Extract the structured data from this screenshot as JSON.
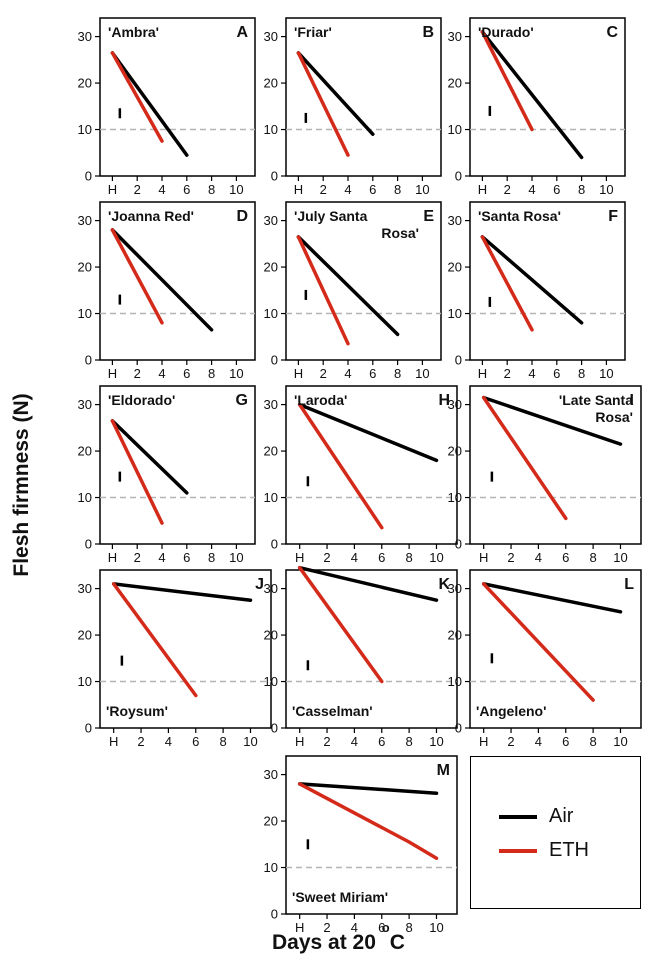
{
  "figure": {
    "ylabel": "Flesh firmness (N)",
    "xlabel_main": "Days at 20",
    "xlabel_sup": "o",
    "xlabel_unit": "C"
  },
  "colors": {
    "air": "#000000",
    "eth": "#d42a1a",
    "threshold": "#b5b5b5"
  },
  "legend": {
    "air": "Air",
    "eth": "ETH"
  },
  "axes": {
    "xticks": [
      {
        "v": 0,
        "label": "H"
      },
      {
        "v": 2,
        "label": "2"
      },
      {
        "v": 4,
        "label": "4"
      },
      {
        "v": 6,
        "label": "6"
      },
      {
        "v": 8,
        "label": "8"
      },
      {
        "v": 10,
        "label": "10"
      }
    ],
    "yticks": [
      0,
      10,
      20,
      30
    ],
    "xlim": [
      -1,
      11.5
    ],
    "ylim": [
      0,
      34
    ],
    "threshold": 10
  },
  "chart_data": [
    {
      "type": "line",
      "letter": "A",
      "title": "'Ambra'",
      "xlim": [
        -1,
        11.5
      ],
      "ylim": [
        0,
        34
      ],
      "error_bar": {
        "x": 0.6,
        "y": 13.5
      },
      "series": [
        {
          "name": "Air",
          "x": [
            0,
            6
          ],
          "y": [
            26.5,
            4.5
          ]
        },
        {
          "name": "ETH",
          "x": [
            0,
            4
          ],
          "y": [
            26.5,
            7.5
          ]
        }
      ]
    },
    {
      "type": "line",
      "letter": "B",
      "title": "'Friar'",
      "xlim": [
        -1,
        11.5
      ],
      "ylim": [
        0,
        34
      ],
      "error_bar": {
        "x": 0.6,
        "y": 12.5
      },
      "series": [
        {
          "name": "Air",
          "x": [
            0,
            6
          ],
          "y": [
            26.5,
            9
          ]
        },
        {
          "name": "ETH",
          "x": [
            0,
            4
          ],
          "y": [
            26.5,
            4.5
          ]
        }
      ]
    },
    {
      "type": "line",
      "letter": "C",
      "title": "'Durado'",
      "xlim": [
        -1,
        11.5
      ],
      "ylim": [
        0,
        34
      ],
      "error_bar": {
        "x": 0.6,
        "y": 14
      },
      "series": [
        {
          "name": "Air",
          "x": [
            0,
            8
          ],
          "y": [
            31,
            4
          ]
        },
        {
          "name": "ETH",
          "x": [
            0,
            4
          ],
          "y": [
            31,
            10
          ]
        }
      ]
    },
    {
      "type": "line",
      "letter": "D",
      "title": "'Joanna Red'",
      "xlim": [
        -1,
        11.5
      ],
      "ylim": [
        0,
        34
      ],
      "error_bar": {
        "x": 0.6,
        "y": 13
      },
      "series": [
        {
          "name": "Air",
          "x": [
            0,
            8
          ],
          "y": [
            28,
            6.5
          ]
        },
        {
          "name": "ETH",
          "x": [
            0,
            4
          ],
          "y": [
            28,
            8
          ]
        }
      ]
    },
    {
      "type": "line",
      "letter": "E",
      "title": "'July Santa Rosa'",
      "title_lines": [
        "'July Santa",
        "Rosa'"
      ],
      "xlim": [
        -1,
        11.5
      ],
      "ylim": [
        0,
        34
      ],
      "error_bar": {
        "x": 0.6,
        "y": 14
      },
      "series": [
        {
          "name": "Air",
          "x": [
            0,
            8
          ],
          "y": [
            26.5,
            5.5
          ]
        },
        {
          "name": "ETH",
          "x": [
            0,
            4
          ],
          "y": [
            26.5,
            3.5
          ]
        }
      ]
    },
    {
      "type": "line",
      "letter": "F",
      "title": "'Santa Rosa'",
      "xlim": [
        -1,
        11.5
      ],
      "ylim": [
        0,
        34
      ],
      "error_bar": {
        "x": 0.6,
        "y": 12.5
      },
      "series": [
        {
          "name": "Air",
          "x": [
            0,
            8
          ],
          "y": [
            26.5,
            8
          ]
        },
        {
          "name": "ETH",
          "x": [
            0,
            4
          ],
          "y": [
            26.5,
            6.5
          ]
        }
      ]
    },
    {
      "type": "line",
      "letter": "G",
      "title": "'Eldorado'",
      "xlim": [
        -1,
        11.5
      ],
      "ylim": [
        0,
        34
      ],
      "error_bar": {
        "x": 0.6,
        "y": 14.5
      },
      "series": [
        {
          "name": "Air",
          "x": [
            0,
            6
          ],
          "y": [
            26.5,
            11
          ]
        },
        {
          "name": "ETH",
          "x": [
            0,
            4
          ],
          "y": [
            26.5,
            4.5
          ]
        }
      ]
    },
    {
      "type": "line",
      "letter": "H",
      "title": "'Laroda'",
      "xlim": [
        -1,
        11.5
      ],
      "ylim": [
        0,
        34
      ],
      "error_bar": {
        "x": 0.6,
        "y": 13.5
      },
      "series": [
        {
          "name": "Air",
          "x": [
            0,
            10
          ],
          "y": [
            30,
            18
          ]
        },
        {
          "name": "ETH",
          "x": [
            0,
            6
          ],
          "y": [
            30,
            3.5
          ]
        }
      ]
    },
    {
      "type": "line",
      "letter": "I",
      "title": "'Late Santa Rosa'",
      "title_lines": [
        "'Late Santa",
        "Rosa'"
      ],
      "xlim": [
        -1,
        11.5
      ],
      "ylim": [
        0,
        34
      ],
      "error_bar": {
        "x": 0.6,
        "y": 14.5
      },
      "series": [
        {
          "name": "Air",
          "x": [
            0,
            10
          ],
          "y": [
            31.5,
            21.5
          ]
        },
        {
          "name": "ETH",
          "x": [
            0,
            6
          ],
          "y": [
            31.5,
            5.5
          ]
        }
      ]
    },
    {
      "type": "line",
      "letter": "J",
      "title": "'Roysum'",
      "xlim": [
        -1,
        11.5
      ],
      "ylim": [
        0,
        34
      ],
      "error_bar": {
        "x": 0.6,
        "y": 14.5
      },
      "series": [
        {
          "name": "Air",
          "x": [
            0,
            10
          ],
          "y": [
            31,
            27.5
          ]
        },
        {
          "name": "ETH",
          "x": [
            0,
            6
          ],
          "y": [
            31,
            7
          ]
        }
      ]
    },
    {
      "type": "line",
      "letter": "K",
      "title": "'Casselman'",
      "xlim": [
        -1,
        11.5
      ],
      "ylim": [
        0,
        34
      ],
      "error_bar": {
        "x": 0.6,
        "y": 13.5
      },
      "series": [
        {
          "name": "Air",
          "x": [
            0,
            10
          ],
          "y": [
            34.5,
            27.5
          ]
        },
        {
          "name": "ETH",
          "x": [
            0,
            6
          ],
          "y": [
            34.5,
            10
          ]
        }
      ]
    },
    {
      "type": "line",
      "letter": "L",
      "title": "'Angeleno'",
      "xlim": [
        -1,
        11.5
      ],
      "ylim": [
        0,
        34
      ],
      "error_bar": {
        "x": 0.6,
        "y": 15
      },
      "series": [
        {
          "name": "Air",
          "x": [
            0,
            10
          ],
          "y": [
            31,
            25
          ]
        },
        {
          "name": "ETH",
          "x": [
            0,
            8
          ],
          "y": [
            31,
            6
          ]
        }
      ]
    },
    {
      "type": "line",
      "letter": "M",
      "title": "'Sweet Miriam'",
      "xlim": [
        -1,
        11.5
      ],
      "ylim": [
        0,
        34
      ],
      "error_bar": {
        "x": 0.6,
        "y": 15
      },
      "series": [
        {
          "name": "Air",
          "x": [
            0,
            10
          ],
          "y": [
            28,
            26
          ]
        },
        {
          "name": "ETH",
          "x": [
            0,
            8,
            10
          ],
          "y": [
            28,
            15.5,
            12
          ]
        }
      ]
    }
  ]
}
